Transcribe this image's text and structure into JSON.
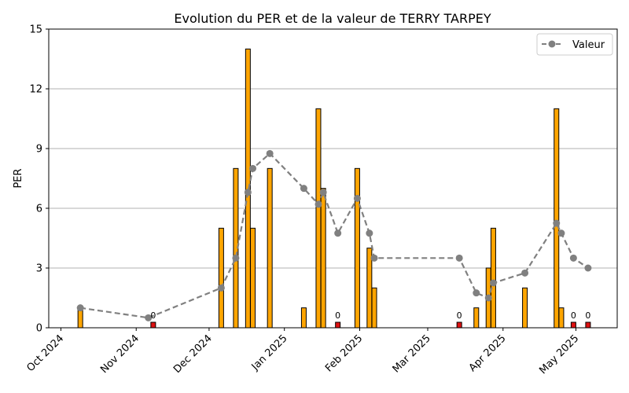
{
  "chart_data": {
    "type": "bar",
    "title": "Evolution du PER et de la valeur de TERRY TARPEY",
    "ylabel": "PER",
    "xlabel": "",
    "ylim": [
      0,
      15
    ],
    "xlim": [
      "2024-09-26",
      "2025-05-18"
    ],
    "yticks": [
      "0",
      "3",
      "6",
      "9",
      "12",
      "15"
    ],
    "xticks": [
      {
        "date": "2024-10-01",
        "label": "Oct 2024"
      },
      {
        "date": "2024-11-01",
        "label": "Nov 2024"
      },
      {
        "date": "2024-12-01",
        "label": "Dec 2024"
      },
      {
        "date": "2025-01-01",
        "label": "Jan 2025"
      },
      {
        "date": "2025-02-01",
        "label": "Feb 2025"
      },
      {
        "date": "2025-03-01",
        "label": "Mar 2025"
      },
      {
        "date": "2025-04-01",
        "label": "Apr 2025"
      },
      {
        "date": "2025-05-01",
        "label": "May 2025"
      }
    ],
    "grid": "horizontal",
    "legend_position": "top-right",
    "colors": {
      "bar": "#FFA500",
      "bar_zero": "#DD1111",
      "line": "#808080",
      "bar_edge": "#000000",
      "grid": "#b0b0b0"
    },
    "bars": [
      {
        "date": "2024-10-09",
        "value": 1
      },
      {
        "date": "2024-11-08",
        "value": 0,
        "label": "0"
      },
      {
        "date": "2024-12-06",
        "value": 5
      },
      {
        "date": "2024-12-12",
        "value": 8
      },
      {
        "date": "2024-12-17",
        "value": 14
      },
      {
        "date": "2024-12-19",
        "value": 5
      },
      {
        "date": "2024-12-26",
        "value": 8
      },
      {
        "date": "2025-01-09",
        "value": 1
      },
      {
        "date": "2025-01-15",
        "value": 11
      },
      {
        "date": "2025-01-17",
        "value": 7
      },
      {
        "date": "2025-01-23",
        "value": 0,
        "label": "0"
      },
      {
        "date": "2025-01-31",
        "value": 8
      },
      {
        "date": "2025-02-05",
        "value": 4
      },
      {
        "date": "2025-02-07",
        "value": 2
      },
      {
        "date": "2025-03-14",
        "value": 0,
        "label": "0"
      },
      {
        "date": "2025-03-21",
        "value": 1
      },
      {
        "date": "2025-03-26",
        "value": 3
      },
      {
        "date": "2025-03-28",
        "value": 5
      },
      {
        "date": "2025-04-10",
        "value": 2
      },
      {
        "date": "2025-04-23",
        "value": 11
      },
      {
        "date": "2025-04-25",
        "value": 1
      },
      {
        "date": "2025-04-30",
        "value": 0,
        "label": "0"
      },
      {
        "date": "2025-05-06",
        "value": 0,
        "label": "0"
      }
    ],
    "series": [
      {
        "name": "Valeur",
        "type": "line",
        "points": [
          {
            "date": "2024-10-09",
            "value": 1.0
          },
          {
            "date": "2024-11-06",
            "value": 0.5
          },
          {
            "date": "2024-12-06",
            "value": 2.0
          },
          {
            "date": "2024-12-12",
            "value": 3.5
          },
          {
            "date": "2024-12-17",
            "value": 6.8
          },
          {
            "date": "2024-12-19",
            "value": 8.0
          },
          {
            "date": "2024-12-26",
            "value": 8.75
          },
          {
            "date": "2025-01-09",
            "value": 7.0
          },
          {
            "date": "2025-01-15",
            "value": 6.2
          },
          {
            "date": "2025-01-17",
            "value": 6.8
          },
          {
            "date": "2025-01-23",
            "value": 4.75
          },
          {
            "date": "2025-01-31",
            "value": 6.5
          },
          {
            "date": "2025-02-05",
            "value": 4.75
          },
          {
            "date": "2025-02-07",
            "value": 3.5
          },
          {
            "date": "2025-03-14",
            "value": 3.5
          },
          {
            "date": "2025-03-21",
            "value": 1.75
          },
          {
            "date": "2025-03-26",
            "value": 1.5
          },
          {
            "date": "2025-03-28",
            "value": 2.25
          },
          {
            "date": "2025-04-10",
            "value": 2.75
          },
          {
            "date": "2025-04-23",
            "value": 5.25
          },
          {
            "date": "2025-04-25",
            "value": 4.75
          },
          {
            "date": "2025-04-30",
            "value": 3.5
          },
          {
            "date": "2025-05-06",
            "value": 3.0
          }
        ]
      }
    ]
  }
}
